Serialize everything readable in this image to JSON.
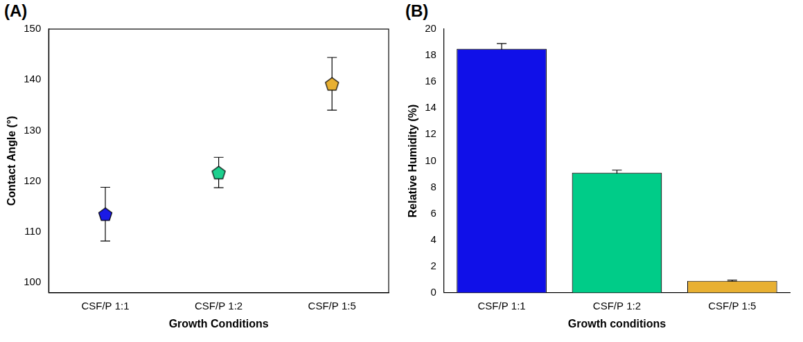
{
  "chart_data": [
    {
      "type": "scatter",
      "title": "(A)",
      "x_label": "Growth Conditions",
      "y_label": "Contact Angle (°)",
      "categories": [
        "CSF/P 1:1",
        "CSF/P 1:2",
        "CSF/P 1:5"
      ],
      "values": [
        113.5,
        121.7,
        139.2
      ],
      "errors": [
        5.3,
        3.0,
        5.2
      ],
      "colors": [
        "#1a1ae6",
        "#1dd08e",
        "#e8b032"
      ],
      "marker": "pentagon",
      "ylim": [
        98,
        150
      ],
      "yticks": [
        100,
        110,
        120,
        130,
        140,
        150
      ],
      "grid": false
    },
    {
      "type": "bar",
      "title": "(B)",
      "x_label": "Growth conditions",
      "y_label": "Relative Humidity (%)",
      "categories": [
        "CSF/P 1:1",
        "CSF/P 1:2",
        "CSF/P 1:5"
      ],
      "values": [
        18.5,
        9.1,
        0.9
      ],
      "errors": [
        0.4,
        0.2,
        0.05
      ],
      "colors": [
        "#1010e8",
        "#00cc88",
        "#e8b032"
      ],
      "ylim": [
        0,
        20
      ],
      "yticks": [
        0,
        2,
        4,
        6,
        8,
        10,
        12,
        14,
        16,
        18,
        20
      ],
      "grid": false
    }
  ]
}
